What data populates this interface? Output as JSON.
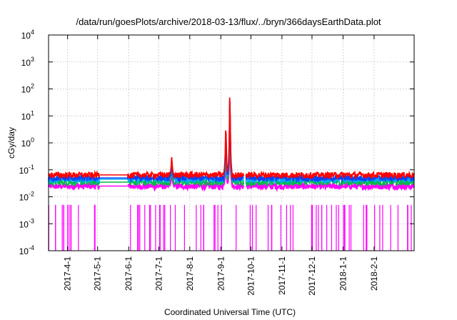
{
  "chart_data": {
    "type": "line",
    "title": "/data/run/goesPlots/archive/2018-03-13/flux/../bryn/366daysEarthData.plot",
    "xlabel": "Coordinated Universal Time (UTC)",
    "ylabel": "cGy/day",
    "y_scale": "log",
    "ylim": [
      0.0001,
      10000
    ],
    "xlim": [
      "2017-03-13",
      "2018-03-13"
    ],
    "grid": true,
    "legend": "none",
    "x_tick_labels": [
      "2017-4-1",
      "2017-5-1",
      "2017-6-1",
      "2017-7-1",
      "2017-8-1",
      "2017-9-1",
      "2017-10-1",
      "2017-11-1",
      "2017-12-1",
      "2018-1-1",
      "2018-2-1"
    ],
    "y_tick_labels": [
      {
        "base": "10",
        "exp": "-4"
      },
      {
        "base": "10",
        "exp": "-3"
      },
      {
        "base": "10",
        "exp": "-2"
      },
      {
        "base": "10",
        "exp": "-1"
      },
      {
        "base": "10",
        "exp": "0"
      },
      {
        "base": "10",
        "exp": "1"
      },
      {
        "base": "10",
        "exp": "2"
      },
      {
        "base": "10",
        "exp": "3"
      },
      {
        "base": "10",
        "exp": "4"
      }
    ],
    "data_gaps": [
      {
        "start": "2017-05-03",
        "end": "2017-05-31"
      },
      {
        "start": "2017-09-24",
        "end": "2017-09-26"
      }
    ],
    "series": [
      {
        "color": "#ff00ff",
        "baseline": 0.025,
        "y": [
          0.025,
          0.025,
          0.025,
          0.025,
          0.025,
          0.025,
          0.025,
          0.025,
          0.025,
          0.025,
          0.025,
          0.025
        ],
        "peaks": [
          {
            "x": "2017-07-14",
            "y": 0.15
          },
          {
            "x": "2017-09-06",
            "y": 0.6
          },
          {
            "x": "2017-09-10",
            "y": 15
          }
        ]
      },
      {
        "color": "#00bb44",
        "baseline": 0.035,
        "y": [
          0.035,
          0.035,
          0.035,
          0.035,
          0.035,
          0.035,
          0.035,
          0.035,
          0.035,
          0.035,
          0.035,
          0.035
        ],
        "peaks": [
          {
            "x": "2017-07-14",
            "y": 0.2
          },
          {
            "x": "2017-09-06",
            "y": 1
          },
          {
            "x": "2017-09-10",
            "y": 20
          }
        ]
      },
      {
        "color": "#00aaff",
        "baseline": 0.045,
        "y": [
          0.045,
          0.045,
          0.045,
          0.045,
          0.045,
          0.045,
          0.045,
          0.045,
          0.045,
          0.045,
          0.045,
          0.045
        ],
        "peaks": [
          {
            "x": "2017-07-14",
            "y": 0.25
          },
          {
            "x": "2017-09-06",
            "y": 3
          },
          {
            "x": "2017-09-10",
            "y": 60
          }
        ]
      },
      {
        "color": "#0044ff",
        "baseline": 0.05,
        "y": [
          0.05,
          0.05,
          0.05,
          0.05,
          0.05,
          0.05,
          0.05,
          0.05,
          0.05,
          0.05,
          0.05,
          0.05
        ],
        "peaks": [
          {
            "x": "2017-07-14",
            "y": 0.3
          },
          {
            "x": "2017-09-06",
            "y": 5
          },
          {
            "x": "2017-09-10",
            "y": 150
          }
        ]
      },
      {
        "color": "#ff0000",
        "baseline": 0.065,
        "y": [
          0.065,
          0.065,
          0.065,
          0.065,
          0.065,
          0.065,
          0.065,
          0.065,
          0.065,
          0.065,
          0.065,
          0.065
        ],
        "peaks": [
          {
            "x": "2017-07-14",
            "y": 0.4
          },
          {
            "x": "2017-09-06",
            "y": 10
          },
          {
            "x": "2017-09-10",
            "y": 200
          }
        ]
      }
    ]
  }
}
